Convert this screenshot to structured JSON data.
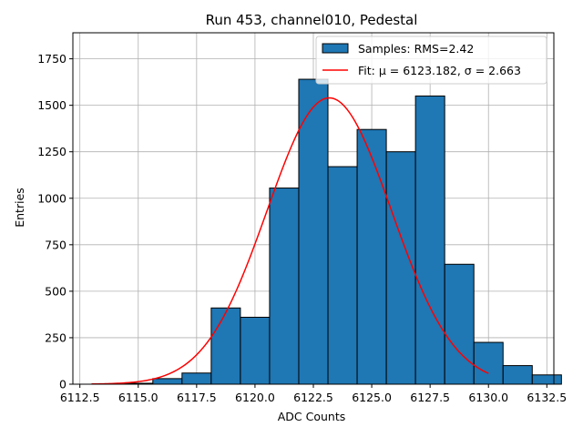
{
  "chart_data": {
    "type": "bar",
    "title": "Run 453, channel010, Pedestal",
    "xlabel": "ADC Counts",
    "ylabel": "Entries",
    "xlim": [
      6112.2,
      6132.8
    ],
    "ylim": [
      0,
      1890
    ],
    "xticks": [
      6112.5,
      6115.0,
      6117.5,
      6120.0,
      6122.5,
      6125.0,
      6127.5,
      6130.0,
      6132.5
    ],
    "xtick_labels": [
      "6112.5",
      "6115.0",
      "6117.5",
      "6120.0",
      "6122.5",
      "6125.0",
      "6127.5",
      "6130.0",
      "6132.5"
    ],
    "yticks": [
      0,
      250,
      500,
      750,
      1000,
      1250,
      1500,
      1750
    ],
    "ytick_labels": [
      "0",
      "250",
      "500",
      "750",
      "1000",
      "1250",
      "1500",
      "1750"
    ],
    "grid": true,
    "legend_position": "top-right",
    "bin_width": 1.25,
    "bins": [
      {
        "x0": 6115.0,
        "value": 5
      },
      {
        "x0": 6116.25,
        "value": 30
      },
      {
        "x0": 6117.5,
        "value": 60
      },
      {
        "x0": 6118.75,
        "value": 410
      },
      {
        "x0": 6120.0,
        "value": 360
      },
      {
        "x0": 6121.25,
        "value": 1055
      },
      {
        "x0": 6122.5,
        "value": 1640
      },
      {
        "x0": 6123.75,
        "value": 1170
      },
      {
        "x0": 6125.0,
        "value": 1370
      },
      {
        "x0": 6126.25,
        "value": 1250
      },
      {
        "x0": 6127.5,
        "value": 1550
      },
      {
        "x0": 6128.75,
        "value": 645
      },
      {
        "x0": 6130.0,
        "value": 225
      },
      {
        "x0": 6131.25,
        "value": 100
      },
      {
        "x0": 6132.5,
        "value": 50
      }
    ],
    "series": [
      {
        "name": "Samples: RMS=2.42",
        "kind": "histogram",
        "color": "#1f77b4",
        "edge_color": "#000000"
      },
      {
        "name": "Fit: μ = 6123.182, σ = 2.663",
        "kind": "gaussian",
        "color": "#ff0000",
        "mu": 6123.182,
        "sigma": 2.663,
        "amplitude": 1540,
        "x_range": [
          6113.0,
          6130.0
        ]
      }
    ]
  }
}
